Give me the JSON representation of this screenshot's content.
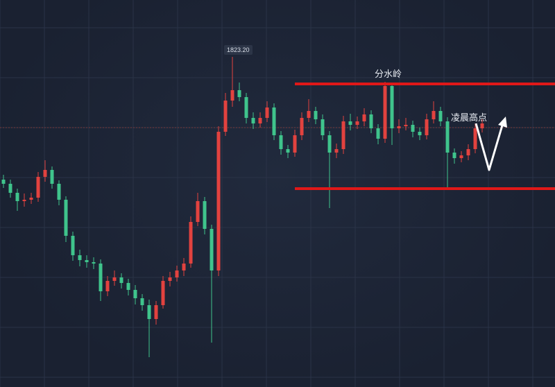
{
  "chart_data": {
    "type": "candlestick",
    "title": "",
    "xlabel": "",
    "ylabel": "",
    "grid": true,
    "colors": {
      "up": "#e2423f",
      "down": "#3fc48c",
      "background": "#1c2333",
      "level_line": "#e01818",
      "arrow": "#ffffff"
    },
    "candles_ohlc": [
      [
        1805.5,
        1806.2,
        1804.3,
        1804.9
      ],
      [
        1804.9,
        1805.5,
        1802.9,
        1803.6
      ],
      [
        1803.6,
        1804.2,
        1801.0,
        1802.4
      ],
      [
        1802.4,
        1803.5,
        1801.6,
        1802.6
      ],
      [
        1802.6,
        1803.6,
        1802.0,
        1802.9
      ],
      [
        1802.9,
        1806.6,
        1802.3,
        1805.9
      ],
      [
        1805.9,
        1808.3,
        1805.2,
        1806.9
      ],
      [
        1806.9,
        1807.4,
        1804.2,
        1804.9
      ],
      [
        1804.9,
        1805.4,
        1801.8,
        1802.6
      ],
      [
        1802.6,
        1803.1,
        1796.5,
        1797.4
      ],
      [
        1797.4,
        1798.0,
        1793.8,
        1794.6
      ],
      [
        1794.6,
        1795.4,
        1793.0,
        1793.9
      ],
      [
        1793.9,
        1794.6,
        1792.8,
        1793.6
      ],
      [
        1793.6,
        1794.3,
        1792.6,
        1793.4
      ],
      [
        1793.4,
        1794.0,
        1788.0,
        1789.4
      ],
      [
        1789.4,
        1791.6,
        1788.7,
        1790.9
      ],
      [
        1790.9,
        1792.4,
        1790.2,
        1791.4
      ],
      [
        1791.4,
        1792.0,
        1789.8,
        1790.6
      ],
      [
        1790.6,
        1791.2,
        1788.8,
        1789.6
      ],
      [
        1789.6,
        1790.3,
        1787.5,
        1788.4
      ],
      [
        1788.4,
        1789.0,
        1786.6,
        1787.4
      ],
      [
        1787.4,
        1788.2,
        1779.9,
        1785.4
      ],
      [
        1785.4,
        1788.0,
        1784.6,
        1787.4
      ],
      [
        1787.4,
        1791.6,
        1786.9,
        1790.9
      ],
      [
        1790.9,
        1792.2,
        1790.1,
        1791.4
      ],
      [
        1791.4,
        1793.1,
        1790.8,
        1792.4
      ],
      [
        1792.4,
        1794.2,
        1791.6,
        1793.4
      ],
      [
        1793.4,
        1800.2,
        1792.8,
        1799.4
      ],
      [
        1799.4,
        1803.6,
        1798.8,
        1802.4
      ],
      [
        1802.4,
        1803.0,
        1797.6,
        1798.4
      ],
      [
        1798.4,
        1799.0,
        1782.0,
        1792.4
      ],
      [
        1792.4,
        1813.2,
        1791.6,
        1812.4
      ],
      [
        1812.4,
        1818.0,
        1811.8,
        1816.9
      ],
      [
        1816.9,
        1823.2,
        1816.0,
        1818.4
      ],
      [
        1818.4,
        1819.5,
        1816.8,
        1817.4
      ],
      [
        1817.4,
        1818.0,
        1813.6,
        1814.4
      ],
      [
        1814.4,
        1815.2,
        1812.8,
        1813.6
      ],
      [
        1813.6,
        1815.2,
        1813.0,
        1814.4
      ],
      [
        1814.4,
        1816.8,
        1813.8,
        1815.9
      ],
      [
        1815.9,
        1816.5,
        1811.2,
        1811.9
      ],
      [
        1811.9,
        1812.5,
        1809.1,
        1809.9
      ],
      [
        1809.9,
        1810.5,
        1808.6,
        1809.4
      ],
      [
        1809.4,
        1812.7,
        1808.8,
        1811.9
      ],
      [
        1811.9,
        1815.2,
        1811.2,
        1814.4
      ],
      [
        1814.4,
        1817.1,
        1813.8,
        1815.4
      ],
      [
        1815.4,
        1816.0,
        1813.5,
        1814.2
      ],
      [
        1814.2,
        1814.9,
        1811.2,
        1811.9
      ],
      [
        1811.9,
        1812.5,
        1801.4,
        1809.4
      ],
      [
        1809.4,
        1810.7,
        1808.6,
        1809.9
      ],
      [
        1809.9,
        1814.7,
        1809.2,
        1813.9
      ],
      [
        1813.9,
        1815.0,
        1812.6,
        1813.4
      ],
      [
        1813.4,
        1814.6,
        1812.8,
        1813.9
      ],
      [
        1813.9,
        1815.8,
        1813.2,
        1814.9
      ],
      [
        1814.9,
        1815.5,
        1812.2,
        1812.9
      ],
      [
        1812.9,
        1813.5,
        1810.6,
        1811.4
      ],
      [
        1811.4,
        1819.6,
        1810.8,
        1819.0
      ],
      [
        1819.0,
        1819.4,
        1810.5,
        1812.9
      ],
      [
        1812.9,
        1814.2,
        1812.2,
        1813.2
      ],
      [
        1813.2,
        1814.4,
        1812.6,
        1813.4
      ],
      [
        1813.4,
        1814.0,
        1811.6,
        1812.4
      ],
      [
        1812.4,
        1813.0,
        1811.2,
        1811.9
      ],
      [
        1811.9,
        1815.0,
        1811.3,
        1814.2
      ],
      [
        1814.2,
        1816.8,
        1813.6,
        1815.4
      ],
      [
        1815.4,
        1816.0,
        1813.2,
        1813.9
      ],
      [
        1813.9,
        1814.5,
        1804.4,
        1809.4
      ],
      [
        1809.4,
        1810.0,
        1807.8,
        1808.6
      ],
      [
        1808.6,
        1809.6,
        1808.0,
        1809.0
      ],
      [
        1809.0,
        1810.6,
        1808.3,
        1809.9
      ],
      [
        1809.9,
        1813.6,
        1809.3,
        1812.9
      ],
      [
        1812.9,
        1814.2,
        1812.3,
        1813.6
      ]
    ],
    "high_label": "1823.20",
    "current_price_line": 1813.0,
    "levels": [
      {
        "price": 1819.3,
        "label": "分水岭"
      },
      {
        "price": 1804.2,
        "label": ""
      }
    ],
    "annotations": [
      {
        "text": "凌晨高点"
      }
    ],
    "arrows": "down-then-up"
  }
}
